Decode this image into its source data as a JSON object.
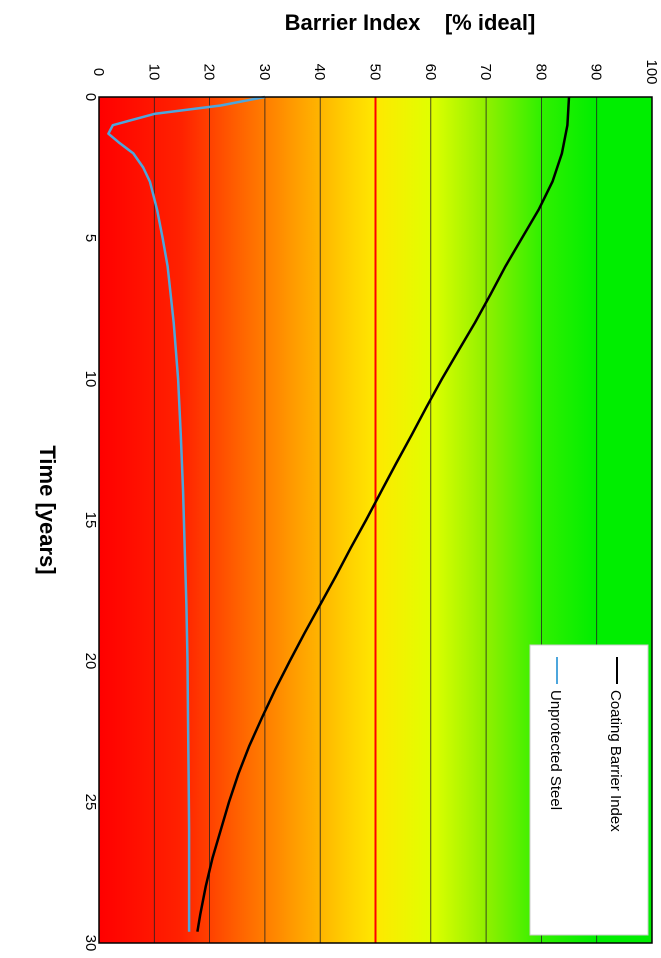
{
  "chart_data": {
    "type": "line",
    "orientation": "rotated-90-clockwise",
    "title": "",
    "xlabel": "Time [years]",
    "ylabel": "Barrier Index    [% ideal]",
    "xlim": [
      0,
      30
    ],
    "ylim": [
      0,
      100
    ],
    "x_ticks": [
      "0",
      "5",
      "10",
      "15",
      "20",
      "25",
      "30"
    ],
    "y_ticks": [
      "0",
      "10",
      "20",
      "30",
      "40",
      "50",
      "60",
      "70",
      "80",
      "90",
      "100"
    ],
    "grid": "y-major",
    "background": "gradient red (0%) to orange to yellow (50%) to green (100%)",
    "reference_line": {
      "y": 50,
      "color": "#ff0000"
    },
    "legend_position": "top-right",
    "series": [
      {
        "name": "Coating Barrier Index",
        "color": "#000000",
        "x": [
          0,
          1,
          2,
          3,
          4,
          5,
          6,
          7,
          8,
          9,
          10,
          11,
          12,
          13,
          14,
          15,
          16,
          17,
          18,
          19,
          20,
          21,
          22,
          23,
          24,
          25,
          26,
          27,
          28,
          29,
          29.6
        ],
        "y": [
          85,
          84.7,
          83.7,
          82,
          79.5,
          76.5,
          73.5,
          70.8,
          68,
          65,
          62,
          59.2,
          56.5,
          53.7,
          51,
          48.3,
          45.5,
          42.8,
          40,
          37.2,
          34.5,
          31.9,
          29.5,
          27.2,
          25.2,
          23.5,
          22,
          20.5,
          19.3,
          18.3,
          17.8
        ]
      },
      {
        "name": "Unprotected Steel",
        "color": "#4ea6dc",
        "x": [
          0,
          0.3,
          0.6,
          1.0,
          1.3,
          1.6,
          2.0,
          2.5,
          3,
          4,
          5,
          6,
          8,
          10,
          12,
          14,
          16,
          18,
          20,
          22,
          24,
          26,
          28,
          29.6
        ],
        "y": [
          30,
          22,
          10,
          2.5,
          1.7,
          3.5,
          6.2,
          8,
          9.2,
          10.5,
          11.5,
          12.4,
          13.5,
          14.3,
          14.8,
          15.2,
          15.5,
          15.8,
          16,
          16.1,
          16.2,
          16.3,
          16.3,
          16.3
        ]
      }
    ]
  }
}
